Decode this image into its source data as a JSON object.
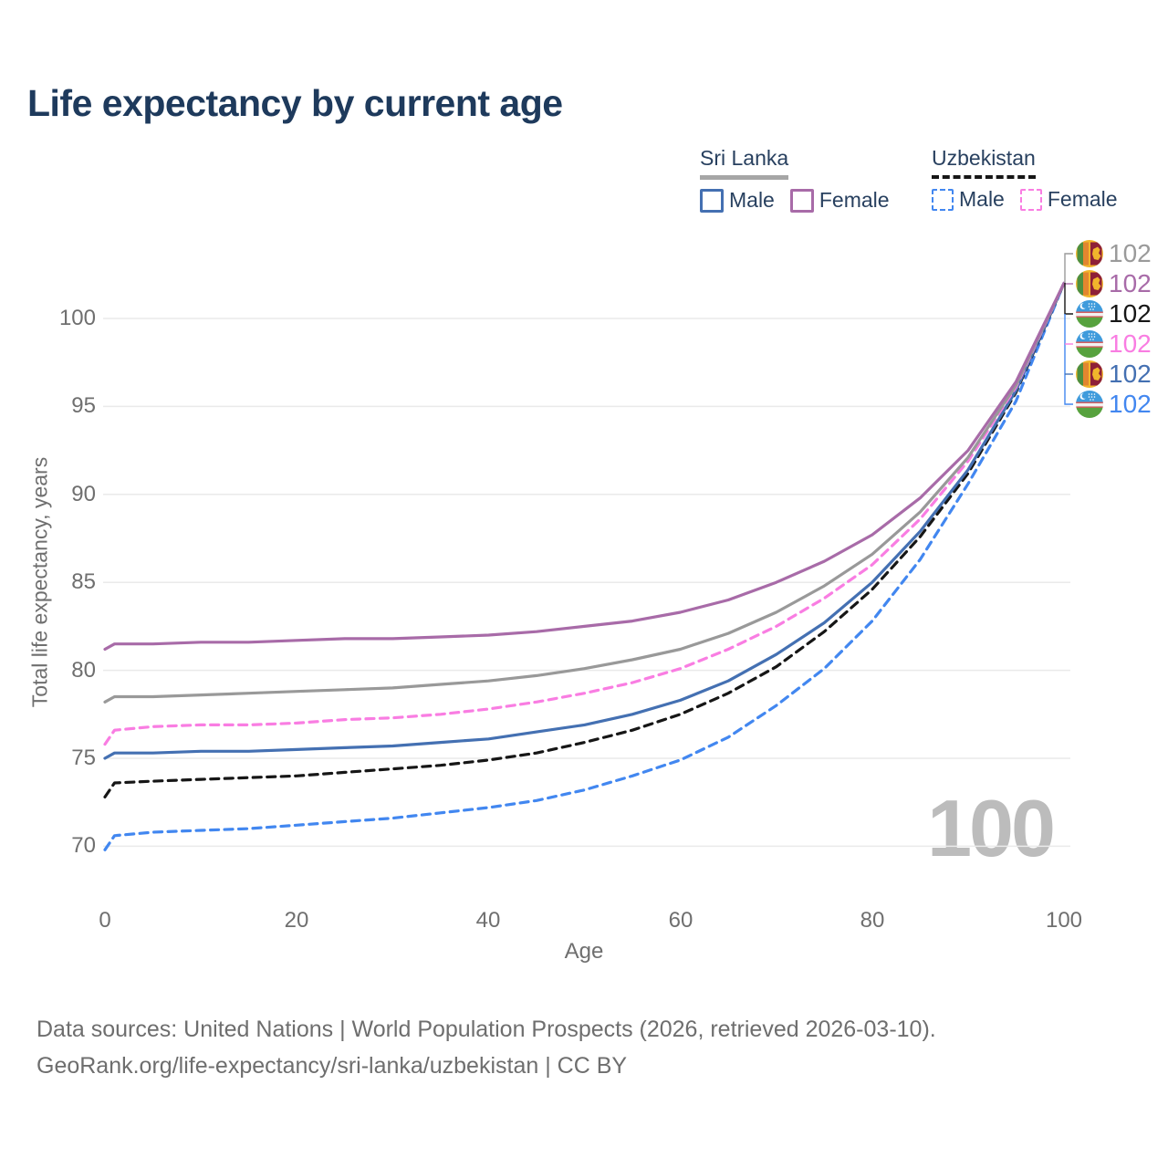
{
  "title": "Life expectancy by current age",
  "legend": {
    "groups": [
      {
        "country": "Sri Lanka",
        "line_color": "#a6a6a6",
        "line_style": "solid",
        "items": [
          {
            "label": "Male",
            "color": "#4470b2",
            "box_style": "solid"
          },
          {
            "label": "Female",
            "color": "#a86ba8",
            "box_style": "solid"
          }
        ]
      },
      {
        "country": "Uzbekistan",
        "line_color": "#161616",
        "line_style": "dashed",
        "items": [
          {
            "label": "Male",
            "color": "#4287f0",
            "box_style": "dashed"
          },
          {
            "label": "Female",
            "color": "#f97de2",
            "box_style": "dashed"
          }
        ]
      }
    ]
  },
  "chart_data": {
    "type": "line",
    "title": "Life expectancy by current age",
    "xlabel": "Age",
    "ylabel": "Total life expectancy, years",
    "xlim": [
      0,
      100
    ],
    "ylim": [
      69.5,
      102.5
    ],
    "xticks": [
      0,
      20,
      40,
      60,
      80,
      100
    ],
    "yticks": [
      70,
      75,
      80,
      85,
      90,
      95,
      100
    ],
    "grid": "horizontal-only",
    "legend_position": "top-right",
    "x": [
      0,
      1,
      5,
      10,
      15,
      20,
      25,
      30,
      35,
      40,
      45,
      50,
      55,
      60,
      65,
      70,
      75,
      80,
      85,
      90,
      95,
      100
    ],
    "series": [
      {
        "name": "Uzbekistan Male",
        "country": "Uzbekistan",
        "sex": "Male",
        "style": "dashed",
        "color": "#4287f0",
        "end_value": 102,
        "values": [
          69.8,
          70.6,
          70.8,
          70.9,
          71.0,
          71.2,
          71.4,
          71.6,
          71.9,
          72.2,
          72.6,
          73.2,
          74.0,
          74.9,
          76.2,
          78.0,
          80.1,
          82.8,
          86.3,
          90.6,
          95.3,
          102
        ]
      },
      {
        "name": "Uzbekistan",
        "country": "Uzbekistan",
        "sex": "Both sexes",
        "style": "dashed",
        "color": "#161616",
        "end_value": 102,
        "values": [
          72.8,
          73.6,
          73.7,
          73.8,
          73.9,
          74.0,
          74.2,
          74.4,
          74.6,
          74.9,
          75.3,
          75.9,
          76.6,
          77.5,
          78.7,
          80.2,
          82.2,
          84.6,
          87.6,
          91.2,
          95.8,
          102
        ]
      },
      {
        "name": "Sri Lanka Male",
        "country": "Sri Lanka",
        "sex": "Male",
        "style": "solid",
        "color": "#4470b2",
        "end_value": 102,
        "values": [
          75.0,
          75.3,
          75.3,
          75.4,
          75.4,
          75.5,
          75.6,
          75.7,
          75.9,
          76.1,
          76.5,
          76.9,
          77.5,
          78.3,
          79.4,
          80.9,
          82.7,
          85.0,
          87.9,
          91.4,
          95.9,
          102
        ]
      },
      {
        "name": "Uzbekistan Female",
        "country": "Uzbekistan",
        "sex": "Female",
        "style": "dashed",
        "color": "#f97de2",
        "end_value": 102,
        "values": [
          75.8,
          76.6,
          76.8,
          76.9,
          76.9,
          77.0,
          77.2,
          77.3,
          77.5,
          77.8,
          78.2,
          78.7,
          79.3,
          80.1,
          81.2,
          82.5,
          84.1,
          86.0,
          88.6,
          91.9,
          96.1,
          102
        ]
      },
      {
        "name": "Sri Lanka",
        "country": "Sri Lanka",
        "sex": "Both sexes",
        "style": "solid",
        "color": "#999999",
        "end_value": 102,
        "values": [
          78.2,
          78.5,
          78.5,
          78.6,
          78.7,
          78.8,
          78.9,
          79.0,
          79.2,
          79.4,
          79.7,
          80.1,
          80.6,
          81.2,
          82.1,
          83.3,
          84.8,
          86.6,
          89.0,
          92.1,
          96.2,
          102
        ]
      },
      {
        "name": "Sri Lanka Female",
        "country": "Sri Lanka",
        "sex": "Female",
        "style": "solid",
        "color": "#a86ba8",
        "end_value": 102,
        "values": [
          81.2,
          81.5,
          81.5,
          81.6,
          81.6,
          81.7,
          81.8,
          81.8,
          81.9,
          82.0,
          82.2,
          82.5,
          82.8,
          83.3,
          84.0,
          85.0,
          86.2,
          87.7,
          89.8,
          92.5,
          96.4,
          102
        ]
      }
    ]
  },
  "end_labels": [
    {
      "flag": "sri-lanka",
      "series": "Sri Lanka",
      "value": "102",
      "color": "#9a9a9a"
    },
    {
      "flag": "sri-lanka",
      "series": "Sri Lanka Female",
      "value": "102",
      "color": "#a86ba8"
    },
    {
      "flag": "uzbekistan",
      "series": "Uzbekistan",
      "value": "102",
      "color": "#161616"
    },
    {
      "flag": "uzbekistan",
      "series": "Uzbekistan Female",
      "value": "102",
      "color": "#f97de2"
    },
    {
      "flag": "sri-lanka",
      "series": "Sri Lanka Male",
      "value": "102",
      "color": "#4470b2"
    },
    {
      "flag": "uzbekistan",
      "series": "Uzbekistan Male",
      "value": "102",
      "color": "#4287f0"
    }
  ],
  "watermark": "100",
  "footer": {
    "line1": "Data sources: United Nations | World Population Prospects (2026, retrieved 2026-03-10).",
    "line2": "GeoRank.org/life-expectancy/sri-lanka/uzbekistan | CC BY"
  }
}
